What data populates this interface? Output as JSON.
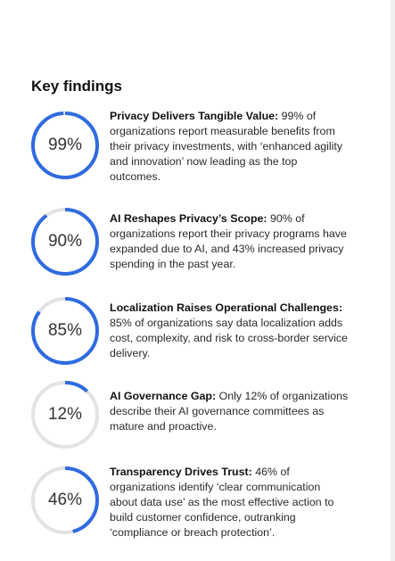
{
  "heading": "Key findings",
  "colors": {
    "accent": "#2f6be0",
    "track": "#e3e3e3"
  },
  "findings": [
    {
      "percent": 99,
      "label": "99%",
      "title": "Privacy Delivers Tangible Value:",
      "body": " 99% of organizations report measurable benefits from their privacy investments, with ‘enhanced agility and innovation’ now leading as the top outcomes."
    },
    {
      "percent": 90,
      "label": "90%",
      "title": "AI Reshapes Privacy’s Scope:",
      "body": " 90% of organizations report their privacy programs have expanded due to AI, and 43% increased privacy spending in the past year."
    },
    {
      "percent": 85,
      "label": "85%",
      "title": "Localization Raises Operational Challenges:",
      "body": " 85% of organizations say data localization adds cost, complexity, and risk to cross-border service delivery."
    },
    {
      "percent": 12,
      "label": "12%",
      "title": "AI Governance Gap:",
      "body": " Only 12% of organizations describe their AI governance committees as mature and proactive."
    },
    {
      "percent": 46,
      "label": "46%",
      "title": "Transparency Drives Trust:",
      "body": " 46% of organizations identify ‘clear communication about data use’ as the most effective action to build customer confidence, outranking ‘compliance or breach protection’."
    }
  ]
}
